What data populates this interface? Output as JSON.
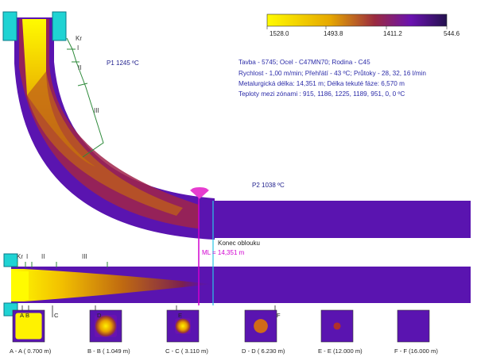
{
  "colors": {
    "hot": "#fffb00",
    "warm": "#e9a000",
    "mid": "#a02040",
    "cool": "#6a12b0",
    "cold": "#4a10a8",
    "mold": "#1fd3d3",
    "ml_line": "#d100d1",
    "arc_end_line": "#29c6e6",
    "text_blue": "#2b2ba8"
  },
  "legend": {
    "labels": [
      "1528.0",
      "1493.8",
      "1411.2",
      "544.6"
    ]
  },
  "info": {
    "line1": "Tavba - 5745; Ocel - C47MN70; Rodina - C45",
    "line2": "Rychlost - 1,00 m/min; Přehřátí -   43 ºC; Průtoky -  28,  32,  16 l/min",
    "line3": "Metalurgická délka:  14,351 m; Délka tekuté fáze:   6,570 m",
    "line4": "Teploty mezi zónami :  915, 1186, 1225, 1189,  951,   0,    0 ºC"
  },
  "points": {
    "p1": "P1 1245 ºC",
    "p2": "P2 1038 ºC"
  },
  "zones_top": [
    "Kr",
    "I",
    "II",
    "III"
  ],
  "zones_bottom": [
    "Kr",
    "I",
    "II",
    "III"
  ],
  "markers": {
    "end_of_arc": "Konec oblouku",
    "ml": "ML = 14,351 m"
  },
  "section_letters": [
    "A",
    "B",
    "C",
    "D",
    "E",
    "F"
  ],
  "sections": [
    {
      "label": "A - A    ( 0.700 m)",
      "core": 0.92
    },
    {
      "label": "B - B   ( 1.049 m)",
      "core": 0.78
    },
    {
      "label": "C - C    ( 3.110 m)",
      "core": 0.55
    },
    {
      "label": "D - D    ( 6.230 m)",
      "core": 0.38
    },
    {
      "label": "E - E    (12.000 m)",
      "core": 0.14
    },
    {
      "label": "F - F    (16.000 m)",
      "core": 0.0
    }
  ]
}
